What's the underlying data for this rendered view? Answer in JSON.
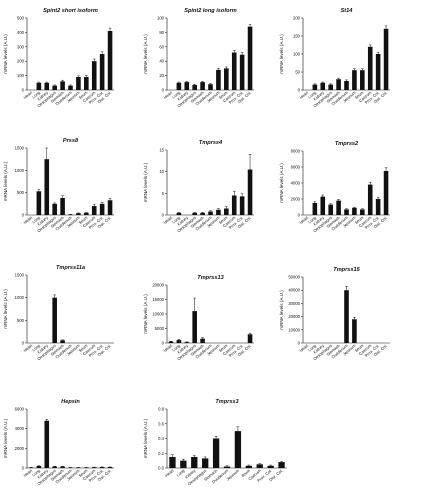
{
  "figure": {
    "categories": [
      "Heart",
      "Lung",
      "Kidney",
      "Oesophagus",
      "Stomach",
      "Duodenum",
      "Jejunum",
      "Ileum",
      "Caecum",
      "Prox. Col.",
      "Dist. Col."
    ],
    "ylabel": "mRNA levels (A.U.)"
  },
  "chart_data": [
    {
      "type": "bar",
      "title": "Spint2 short isoform",
      "ylabel": "mRNA levels (A.U.)",
      "ylim": [
        0,
        500
      ],
      "yticks": [
        "0",
        "100",
        "200",
        "300",
        "400",
        "500"
      ],
      "categories": [
        "Heart",
        "Lung",
        "Kidney",
        "Oesophagus",
        "Stomach",
        "Duodenum",
        "Jejunum",
        "Ileum",
        "Caecum",
        "Prox. Col.",
        "Dist. Col."
      ],
      "values": [
        0,
        50,
        50,
        30,
        60,
        30,
        90,
        90,
        200,
        250,
        410
      ],
      "errors": [
        0,
        5,
        5,
        5,
        8,
        5,
        8,
        10,
        15,
        15,
        20
      ]
    },
    {
      "type": "bar",
      "title": "Spint2 long isoform",
      "ylabel": "mRNA levels (A.U.)",
      "ylim": [
        0,
        100
      ],
      "yticks": [
        "0",
        "20",
        "40",
        "60",
        "80",
        "100"
      ],
      "categories": [
        "Heart",
        "Lung",
        "Kidney",
        "Oesophagus",
        "Stomach",
        "Duodenum",
        "Jejunum",
        "Ileum",
        "Caecum",
        "Prox. Col.",
        "Dist. Col."
      ],
      "values": [
        0,
        10,
        11,
        7,
        11,
        8,
        28,
        30,
        52,
        49,
        88
      ],
      "errors": [
        0,
        1,
        1,
        1,
        1,
        1,
        2,
        2,
        3,
        3,
        3
      ]
    },
    {
      "type": "bar",
      "title": "St14",
      "ylabel": "mRNA levels (A.U.)",
      "ylim": [
        0,
        200
      ],
      "yticks": [
        "0",
        "50",
        "100",
        "150",
        "200"
      ],
      "categories": [
        "Heart",
        "Lung",
        "Kidney",
        "Oesophagus",
        "Stomach",
        "Duodenum",
        "Jejunum",
        "Ileum",
        "Caecum",
        "Prox. Col.",
        "Dist. Col."
      ],
      "values": [
        0,
        15,
        20,
        15,
        30,
        25,
        55,
        55,
        120,
        100,
        170
      ],
      "errors": [
        0,
        2,
        2,
        2,
        3,
        3,
        4,
        4,
        5,
        5,
        8
      ]
    },
    {
      "type": "bar",
      "title": "Prss8",
      "ylabel": "mRNA levels (A.U.)",
      "ylim": [
        0,
        1500
      ],
      "yticks": [
        "0",
        "500",
        "1000",
        "1500"
      ],
      "categories": [
        "Heart",
        "Lung",
        "Kidney",
        "Oesophagus",
        "Stomach",
        "Duodenum",
        "Jejunum",
        "Ileum",
        "Caecum",
        "Prox. Col.",
        "Dist. Col."
      ],
      "values": [
        0,
        530,
        1250,
        250,
        380,
        10,
        40,
        50,
        200,
        250,
        330
      ],
      "errors": [
        0,
        40,
        250,
        20,
        50,
        5,
        5,
        5,
        30,
        30,
        40
      ]
    },
    {
      "type": "bar",
      "title": "Tmprss4",
      "ylabel": "mRNA levels (A.U.)",
      "ylim": [
        0,
        15
      ],
      "yticks": [
        "0",
        "5",
        "10",
        "15"
      ],
      "categories": [
        "Heart",
        "Lung",
        "Kidney",
        "Oesophagus",
        "Stomach",
        "Duodenum",
        "Jejunum",
        "Ileum",
        "Caecum",
        "Prox. Col.",
        "Dist. Col."
      ],
      "values": [
        0,
        0.5,
        0,
        0.5,
        0.5,
        0.8,
        1.2,
        1.5,
        4.5,
        4.3,
        10.5
      ],
      "errors": [
        0,
        0.1,
        0,
        0.1,
        0.1,
        0.2,
        0.3,
        0.4,
        1.0,
        0.6,
        3.5
      ]
    },
    {
      "type": "bar",
      "title": "Tmprss2",
      "ylabel": "mRNA levels (A.U.)",
      "ylim": [
        0,
        8000
      ],
      "yticks": [
        "0",
        "2000",
        "4000",
        "6000",
        "8000"
      ],
      "categories": [
        "Heart",
        "Lung",
        "Kidney",
        "Oesophagus",
        "Stomach",
        "Duodenum",
        "Jejunum",
        "Ileum",
        "Caecum",
        "Prox. Col.",
        "Dist. Col."
      ],
      "values": [
        0,
        1500,
        2300,
        1300,
        1800,
        700,
        900,
        700,
        3800,
        2000,
        5500
      ],
      "errors": [
        0,
        150,
        200,
        100,
        150,
        80,
        80,
        80,
        300,
        200,
        400
      ]
    },
    {
      "type": "bar",
      "title": "Tmprss11a",
      "ylabel": "mRNA levels (A.U.)",
      "ylim": [
        0,
        1500
      ],
      "yticks": [
        "0",
        "500",
        "1000",
        "1500"
      ],
      "categories": [
        "Heart",
        "Lung",
        "Kidney",
        "Oesophagus",
        "Stomach",
        "Duodenum",
        "Jejunum",
        "Ileum",
        "Caecum",
        "Prox. Col.",
        "Dist. Col."
      ],
      "values": [
        0,
        0,
        0,
        1000,
        60,
        0,
        0,
        0,
        0,
        0,
        0
      ],
      "errors": [
        0,
        0,
        0,
        60,
        10,
        0,
        0,
        0,
        0,
        0,
        0
      ]
    },
    {
      "type": "bar",
      "title": "Tmprss13",
      "ylabel": "mRNA levels (A.U.)",
      "ylim": [
        0,
        20000
      ],
      "yticks": [
        "0",
        "5000",
        "10000",
        "15000",
        "20000"
      ],
      "categories": [
        "Heart",
        "Lung",
        "Kidney",
        "Oesophagus",
        "Stomach",
        "Duodenum",
        "Jejunum",
        "Ileum",
        "Caecum",
        "Prox. Col.",
        "Dist. Col."
      ],
      "values": [
        500,
        1000,
        300,
        11000,
        1500,
        0,
        0,
        0,
        0,
        0,
        3000
      ],
      "errors": [
        100,
        300,
        100,
        4500,
        300,
        0,
        0,
        0,
        0,
        0,
        400
      ]
    },
    {
      "type": "bar",
      "title": "Tmprss15",
      "ylabel": "mRNA levels (A.U.)",
      "ylim": [
        0,
        50000
      ],
      "yticks": [
        "0",
        "10000",
        "20000",
        "30000",
        "40000",
        "50000"
      ],
      "categories": [
        "Heart",
        "Lung",
        "Kidney",
        "Oesophagus",
        "Stomach",
        "Duodenum",
        "Jejunum",
        "Ileum",
        "Caecum",
        "Prox. Col.",
        "Dist. Col."
      ],
      "values": [
        0,
        0,
        0,
        0,
        0,
        40000,
        18000,
        0,
        0,
        0,
        0
      ],
      "errors": [
        0,
        0,
        0,
        0,
        0,
        3000,
        1500,
        0,
        0,
        0,
        0
      ]
    },
    {
      "type": "bar",
      "title": "Hepsin",
      "ylabel": "mRNA levels (A.U.)",
      "ylim": [
        0,
        6000
      ],
      "yticks": [
        "0",
        "2000",
        "4000",
        "6000"
      ],
      "categories": [
        "Heart",
        "Lung",
        "Kidney",
        "Oesophagus",
        "Stomach",
        "Duodenum",
        "Jejunum",
        "Ileum",
        "Caecum",
        "Prox. Col.",
        "Dist. Col."
      ],
      "values": [
        50,
        200,
        4800,
        150,
        150,
        50,
        50,
        50,
        80,
        100,
        100
      ],
      "errors": [
        10,
        30,
        150,
        20,
        20,
        10,
        10,
        10,
        10,
        10,
        10
      ]
    },
    {
      "type": "bar",
      "title": "Tmprss3",
      "ylabel": "mRNA levels (A.U.)",
      "ylim": [
        0,
        0.8
      ],
      "yticks": [
        "0.0",
        "0.2",
        "0.4",
        "0.6",
        "0.8"
      ],
      "categories": [
        "Heart",
        "Lung",
        "Kidney",
        "Oesophagus",
        "Stomach",
        "Duodenum",
        "Jejunum",
        "Ileum",
        "Caecum",
        "Prox. Col.",
        "Dist. Col."
      ],
      "values": [
        0.15,
        0.1,
        0.15,
        0.13,
        0.4,
        0.02,
        0.5,
        0.03,
        0.05,
        0.03,
        0.08
      ],
      "errors": [
        0.03,
        0.02,
        0.02,
        0.02,
        0.03,
        0.01,
        0.06,
        0.01,
        0.01,
        0.01,
        0.01
      ]
    }
  ]
}
